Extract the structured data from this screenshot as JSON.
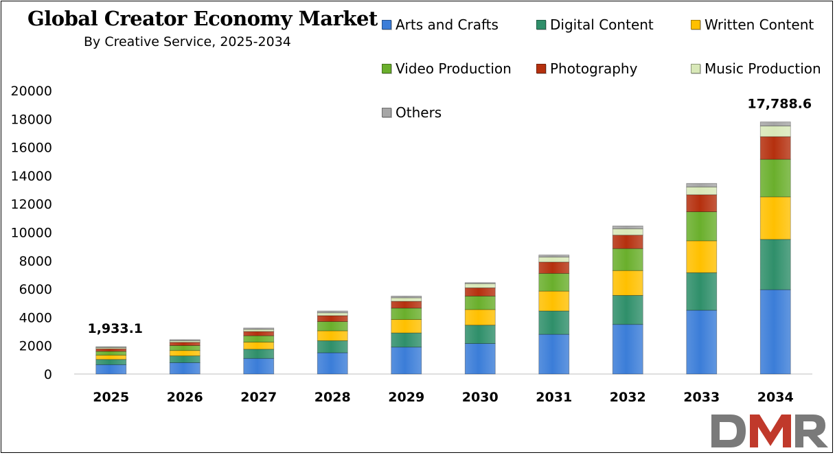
{
  "chart_data": {
    "type": "bar",
    "stacked": true,
    "title": "Global Creator Economy Market",
    "subtitle": "By Creative Service, 2025-2034",
    "categories": [
      "2025",
      "2026",
      "2027",
      "2028",
      "2029",
      "2030",
      "2031",
      "2032",
      "2033",
      "2034"
    ],
    "ylim": [
      0,
      20000
    ],
    "yticks": [
      0,
      2000,
      4000,
      6000,
      8000,
      10000,
      12000,
      14000,
      16000,
      18000,
      20000
    ],
    "grid": false,
    "legend_position": "top-right",
    "series": [
      {
        "name": "Arts and Crafts",
        "color": "#3B7DD8",
        "values": [
          660,
          800,
          1100,
          1500,
          1900,
          2150,
          2800,
          3500,
          4500,
          5950
        ]
      },
      {
        "name": "Digital Content",
        "color": "#2F8F6A",
        "values": [
          370,
          480,
          650,
          850,
          1000,
          1300,
          1650,
          2050,
          2650,
          3550
        ]
      },
      {
        "name": "Written Content",
        "color": "#FFC000",
        "values": [
          300,
          380,
          500,
          700,
          950,
          1100,
          1400,
          1750,
          2250,
          3000
        ]
      },
      {
        "name": "Video Production",
        "color": "#6AAF2C",
        "values": [
          270,
          350,
          450,
          650,
          800,
          950,
          1250,
          1550,
          2050,
          2650
        ]
      },
      {
        "name": "Photography",
        "color": "#B5300E",
        "values": [
          180,
          230,
          300,
          420,
          480,
          580,
          800,
          950,
          1200,
          1600
        ]
      },
      {
        "name": "Music Production",
        "color": "#D8E8B8",
        "values": [
          90,
          110,
          150,
          200,
          250,
          300,
          350,
          450,
          550,
          750
        ]
      },
      {
        "name": "Others",
        "color": "#A6A6A6",
        "values": [
          63,
          80,
          100,
          130,
          120,
          70,
          150,
          200,
          250,
          288.6
        ]
      }
    ],
    "annotations": [
      {
        "category": "2025",
        "text": "1,933.1"
      },
      {
        "category": "2034",
        "text": "17,788.6"
      }
    ]
  },
  "logo": {
    "text": "DMR"
  }
}
